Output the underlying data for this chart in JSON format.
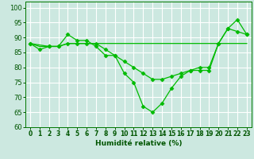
{
  "title": "",
  "xlabel": "Humidité relative (%)",
  "ylabel": "",
  "background_color": "#cce8e0",
  "grid_color": "#ffffff",
  "line_color": "#00bb00",
  "xlim": [
    -0.5,
    23.5
  ],
  "ylim": [
    60,
    102
  ],
  "yticks": [
    60,
    65,
    70,
    75,
    80,
    85,
    90,
    95,
    100
  ],
  "xticks": [
    0,
    1,
    2,
    3,
    4,
    5,
    6,
    7,
    8,
    9,
    10,
    11,
    12,
    13,
    14,
    15,
    16,
    17,
    18,
    19,
    20,
    21,
    22,
    23
  ],
  "series": [
    {
      "x": [
        0,
        1,
        2,
        3,
        4,
        5,
        6,
        7,
        8,
        9,
        10,
        11,
        12,
        13,
        14,
        15,
        16,
        17,
        18,
        19,
        20,
        21,
        22,
        23
      ],
      "y": [
        88,
        87,
        87,
        87,
        88,
        88,
        88,
        88,
        88,
        88,
        88,
        88,
        88,
        88,
        88,
        88,
        88,
        88,
        88,
        88,
        88,
        88,
        88,
        88
      ],
      "marker": false
    },
    {
      "x": [
        0,
        1,
        2,
        3,
        4,
        5,
        6,
        7,
        8,
        9,
        10,
        11,
        12,
        13,
        14,
        15,
        16,
        17,
        18,
        19,
        20,
        21,
        22,
        23
      ],
      "y": [
        88,
        86,
        87,
        87,
        91,
        89,
        89,
        87,
        84,
        84,
        78,
        75,
        67,
        65,
        68,
        73,
        77,
        79,
        79,
        79,
        88,
        93,
        96,
        91
      ],
      "marker": true
    },
    {
      "x": [
        0,
        2,
        3,
        4,
        5,
        6,
        7,
        8,
        9,
        10,
        11,
        12,
        13,
        14,
        15,
        16,
        17,
        18,
        19,
        20,
        21,
        22,
        23
      ],
      "y": [
        88,
        87,
        87,
        88,
        88,
        88,
        88,
        86,
        84,
        82,
        80,
        78,
        76,
        76,
        77,
        78,
        79,
        80,
        80,
        88,
        93,
        92,
        91
      ],
      "marker": true
    }
  ],
  "markersize": 2.5,
  "linewidth": 0.9,
  "xlabel_fontsize": 6.5,
  "xlabel_fontweight": "bold",
  "tick_labelsize": 5.5,
  "ytick_labelsize": 6
}
